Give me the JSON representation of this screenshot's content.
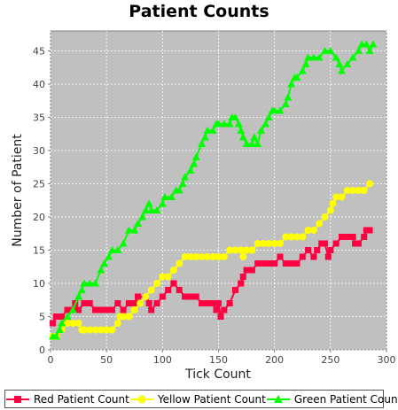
{
  "chart_data": {
    "type": "line",
    "title": "Patient Counts",
    "xlabel": "Tick Count",
    "ylabel": "Number of Patient",
    "xlim": [
      0,
      300
    ],
    "ylim": [
      0,
      48
    ],
    "xticks": [
      0,
      50,
      100,
      150,
      200,
      250,
      300
    ],
    "yticks": [
      0,
      5,
      10,
      15,
      20,
      25,
      30,
      35,
      40,
      45
    ],
    "grid": true,
    "legend": "bottom",
    "background": "#c0c0c0",
    "series": [
      {
        "name": "Red Patient Count",
        "color": "#ff0040",
        "marker": "square",
        "points": [
          [
            2,
            4
          ],
          [
            5,
            5
          ],
          [
            10,
            5
          ],
          [
            15,
            6
          ],
          [
            20,
            6
          ],
          [
            22,
            7
          ],
          [
            25,
            6
          ],
          [
            30,
            7
          ],
          [
            35,
            7
          ],
          [
            40,
            6
          ],
          [
            45,
            6
          ],
          [
            50,
            6
          ],
          [
            55,
            6
          ],
          [
            60,
            7
          ],
          [
            65,
            6
          ],
          [
            70,
            7
          ],
          [
            75,
            7
          ],
          [
            78,
            8
          ],
          [
            85,
            8
          ],
          [
            88,
            7
          ],
          [
            90,
            6
          ],
          [
            95,
            7
          ],
          [
            100,
            8
          ],
          [
            105,
            9
          ],
          [
            110,
            10
          ],
          [
            115,
            9
          ],
          [
            120,
            8
          ],
          [
            125,
            8
          ],
          [
            130,
            8
          ],
          [
            135,
            7
          ],
          [
            140,
            7
          ],
          [
            145,
            7
          ],
          [
            148,
            6
          ],
          [
            150,
            7
          ],
          [
            152,
            5
          ],
          [
            155,
            6
          ],
          [
            160,
            7
          ],
          [
            165,
            9
          ],
          [
            170,
            10
          ],
          [
            172,
            11
          ],
          [
            175,
            12
          ],
          [
            180,
            12
          ],
          [
            185,
            13
          ],
          [
            190,
            13
          ],
          [
            195,
            13
          ],
          [
            200,
            13
          ],
          [
            205,
            14
          ],
          [
            210,
            13
          ],
          [
            215,
            13
          ],
          [
            220,
            13
          ],
          [
            225,
            14
          ],
          [
            230,
            15
          ],
          [
            235,
            14
          ],
          [
            238,
            15
          ],
          [
            242,
            16
          ],
          [
            245,
            16
          ],
          [
            248,
            14
          ],
          [
            250,
            15
          ],
          [
            255,
            16
          ],
          [
            260,
            17
          ],
          [
            265,
            17
          ],
          [
            270,
            17
          ],
          [
            272,
            16
          ],
          [
            275,
            16
          ],
          [
            280,
            17
          ],
          [
            282,
            18
          ],
          [
            285,
            18
          ]
        ]
      },
      {
        "name": "Yellow Patient Count",
        "color": "#ffff00",
        "marker": "circle",
        "points": [
          [
            2,
            2
          ],
          [
            5,
            2
          ],
          [
            10,
            3
          ],
          [
            15,
            4
          ],
          [
            20,
            4
          ],
          [
            25,
            4
          ],
          [
            28,
            3
          ],
          [
            30,
            3
          ],
          [
            35,
            3
          ],
          [
            40,
            3
          ],
          [
            45,
            3
          ],
          [
            50,
            3
          ],
          [
            55,
            3
          ],
          [
            60,
            4
          ],
          [
            62,
            5
          ],
          [
            65,
            5
          ],
          [
            70,
            5
          ],
          [
            75,
            6
          ],
          [
            80,
            7
          ],
          [
            85,
            8
          ],
          [
            90,
            9
          ],
          [
            95,
            10
          ],
          [
            100,
            11
          ],
          [
            105,
            11
          ],
          [
            110,
            12
          ],
          [
            115,
            13
          ],
          [
            120,
            14
          ],
          [
            125,
            14
          ],
          [
            130,
            14
          ],
          [
            135,
            14
          ],
          [
            140,
            14
          ],
          [
            145,
            14
          ],
          [
            150,
            14
          ],
          [
            155,
            14
          ],
          [
            160,
            15
          ],
          [
            165,
            15
          ],
          [
            170,
            15
          ],
          [
            172,
            14
          ],
          [
            175,
            15
          ],
          [
            180,
            15
          ],
          [
            185,
            16
          ],
          [
            190,
            16
          ],
          [
            195,
            16
          ],
          [
            200,
            16
          ],
          [
            205,
            16
          ],
          [
            210,
            17
          ],
          [
            215,
            17
          ],
          [
            220,
            17
          ],
          [
            225,
            17
          ],
          [
            230,
            18
          ],
          [
            235,
            18
          ],
          [
            240,
            19
          ],
          [
            245,
            20
          ],
          [
            250,
            21
          ],
          [
            252,
            22
          ],
          [
            255,
            23
          ],
          [
            260,
            23
          ],
          [
            265,
            24
          ],
          [
            270,
            24
          ],
          [
            275,
            24
          ],
          [
            280,
            24
          ],
          [
            285,
            25
          ]
        ]
      },
      {
        "name": "Green Patient Count",
        "color": "#00ff00",
        "marker": "triangle",
        "points": [
          [
            2,
            2
          ],
          [
            5,
            2
          ],
          [
            8,
            3
          ],
          [
            10,
            4
          ],
          [
            15,
            5
          ],
          [
            20,
            6
          ],
          [
            25,
            8
          ],
          [
            28,
            9
          ],
          [
            30,
            10
          ],
          [
            35,
            10
          ],
          [
            40,
            10
          ],
          [
            45,
            12
          ],
          [
            48,
            13
          ],
          [
            52,
            14
          ],
          [
            55,
            15
          ],
          [
            60,
            15
          ],
          [
            65,
            16
          ],
          [
            70,
            18
          ],
          [
            75,
            18
          ],
          [
            78,
            19
          ],
          [
            82,
            20
          ],
          [
            85,
            21
          ],
          [
            88,
            22
          ],
          [
            90,
            21
          ],
          [
            95,
            21
          ],
          [
            100,
            22
          ],
          [
            102,
            23
          ],
          [
            108,
            23
          ],
          [
            112,
            24
          ],
          [
            115,
            24
          ],
          [
            118,
            25
          ],
          [
            120,
            26
          ],
          [
            125,
            27
          ],
          [
            128,
            28
          ],
          [
            130,
            29
          ],
          [
            135,
            31
          ],
          [
            138,
            32
          ],
          [
            140,
            33
          ],
          [
            145,
            33
          ],
          [
            148,
            34
          ],
          [
            150,
            34
          ],
          [
            155,
            34
          ],
          [
            160,
            34
          ],
          [
            162,
            35
          ],
          [
            165,
            35
          ],
          [
            168,
            34
          ],
          [
            170,
            33
          ],
          [
            172,
            32
          ],
          [
            175,
            31
          ],
          [
            180,
            31
          ],
          [
            182,
            32
          ],
          [
            185,
            31
          ],
          [
            188,
            33
          ],
          [
            192,
            34
          ],
          [
            195,
            35
          ],
          [
            198,
            36
          ],
          [
            200,
            36
          ],
          [
            205,
            36
          ],
          [
            210,
            37
          ],
          [
            212,
            38
          ],
          [
            215,
            40
          ],
          [
            218,
            41
          ],
          [
            220,
            41
          ],
          [
            225,
            42
          ],
          [
            228,
            43
          ],
          [
            230,
            44
          ],
          [
            235,
            44
          ],
          [
            240,
            44
          ],
          [
            245,
            45
          ],
          [
            250,
            45
          ],
          [
            255,
            44
          ],
          [
            258,
            43
          ],
          [
            260,
            42
          ],
          [
            265,
            43
          ],
          [
            270,
            44
          ],
          [
            275,
            45
          ],
          [
            278,
            46
          ],
          [
            282,
            46
          ],
          [
            285,
            45
          ],
          [
            288,
            46
          ]
        ]
      }
    ]
  }
}
